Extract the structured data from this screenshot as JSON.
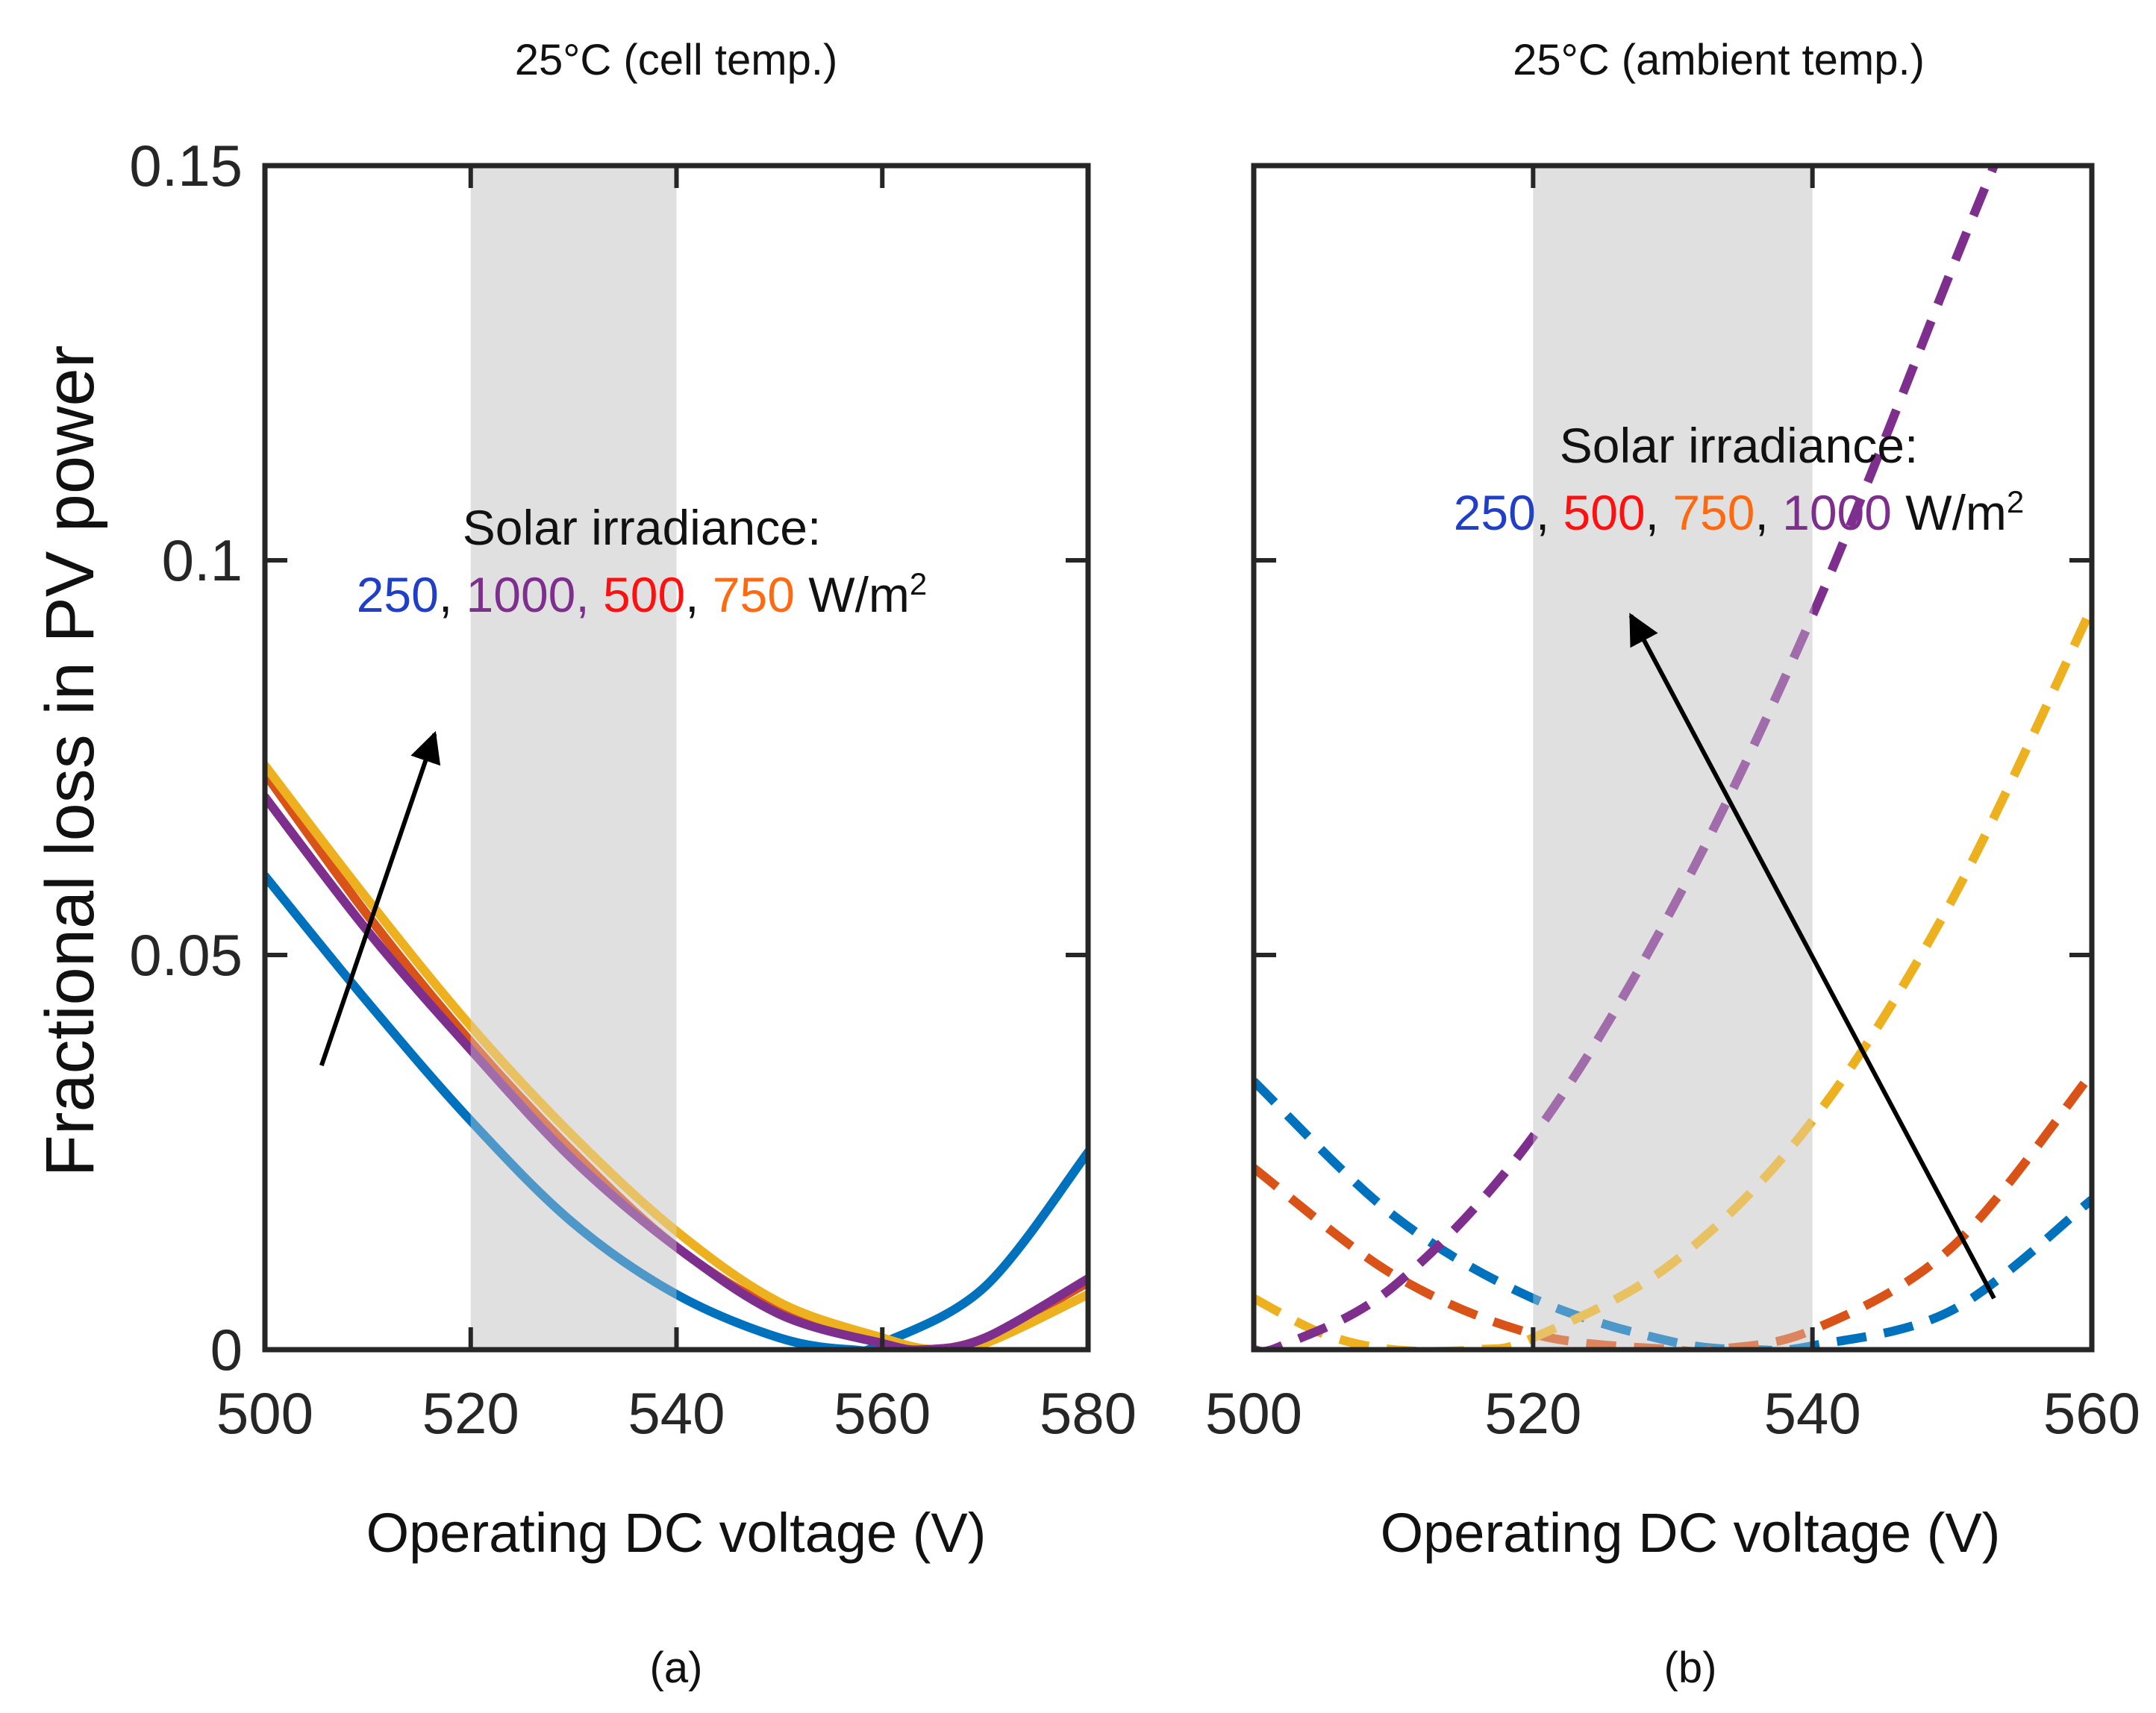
{
  "ylabel": "Fractional loss in PV power",
  "colors": {
    "axis": "#262626",
    "shade": "#e0e0e0",
    "blue": "#0072bd",
    "red": "#d95319",
    "yellow": "#edb120",
    "purple": "#7e2f8e",
    "text_blue": "#1f3fc8",
    "text_purple": "#7e2f8e",
    "text_red": "#ff1010",
    "text_orange": "#ff6a10"
  },
  "chart_data": [
    {
      "id": "a",
      "type": "line",
      "title": "25°C (cell temp.)",
      "caption": "(a)",
      "xlabel": "Operating DC voltage (V)",
      "ylabel": "Fractional loss in PV power",
      "xlim": [
        500,
        580
      ],
      "ylim": [
        0,
        0.15
      ],
      "xticks": [
        "500",
        "520",
        "540",
        "560",
        "580"
      ],
      "xtick_values": [
        500,
        520,
        540,
        560,
        580
      ],
      "yticks": [
        "0",
        "0.05",
        "0.1",
        "0.15"
      ],
      "ytick_values": [
        0,
        0.05,
        0.1,
        0.15
      ],
      "shaded_region": [
        520,
        540
      ],
      "line_style": "solid",
      "annotation": {
        "heading": "Solar irradiance:",
        "values": [
          {
            "text": "250",
            "color": "#1f3fc8"
          },
          {
            "text": ", ",
            "color": "#111111"
          },
          {
            "text": "1000, ",
            "color": "#7e2f8e"
          },
          {
            "text": "500",
            "color": "#ff1010"
          },
          {
            "text": ", ",
            "color": "#111111"
          },
          {
            "text": "750",
            "color": "#ff6a10"
          },
          {
            "text": " W/m",
            "color": "#111111"
          }
        ],
        "superscript": "2",
        "arrow": {
          "from": [
            505.5,
            0.036
          ],
          "to": [
            516.5,
            0.078
          ]
        }
      },
      "series": [
        {
          "name": "250 W/m2",
          "color": "#0072bd",
          "x": [
            500,
            510,
            520,
            530,
            540,
            550,
            557,
            560,
            570,
            580
          ],
          "y": [
            0.06,
            0.044,
            0.029,
            0.016,
            0.007,
            0.0015,
            0.0,
            0.0008,
            0.008,
            0.025
          ]
        },
        {
          "name": "500 W/m2",
          "color": "#d95319",
          "x": [
            500,
            510,
            520,
            530,
            540,
            550,
            560,
            564,
            570,
            580
          ],
          "y": [
            0.073,
            0.055,
            0.039,
            0.025,
            0.013,
            0.005,
            0.001,
            0.0,
            0.0015,
            0.0085
          ]
        },
        {
          "name": "750 W/m2",
          "color": "#edb120",
          "x": [
            500,
            510,
            520,
            530,
            540,
            550,
            560,
            565,
            570,
            580
          ],
          "y": [
            0.074,
            0.057,
            0.041,
            0.027,
            0.015,
            0.006,
            0.0015,
            0.0,
            0.0008,
            0.007
          ]
        },
        {
          "name": "1000 W/m2",
          "color": "#7e2f8e",
          "x": [
            500,
            510,
            520,
            530,
            540,
            550,
            560,
            564,
            570,
            580
          ],
          "y": [
            0.07,
            0.053,
            0.038,
            0.024,
            0.013,
            0.0045,
            0.0008,
            0.0,
            0.0015,
            0.009
          ]
        }
      ]
    },
    {
      "id": "b",
      "type": "line",
      "title": "25°C (ambient temp.)",
      "caption": "(b)",
      "xlabel": "Operating DC voltage (V)",
      "xlim": [
        500,
        560
      ],
      "ylim": [
        0,
        0.15
      ],
      "xticks": [
        "500",
        "520",
        "540",
        "560"
      ],
      "xtick_values": [
        500,
        520,
        540,
        560
      ],
      "yticks": [],
      "ytick_values": [
        0,
        0.05,
        0.1,
        0.15
      ],
      "shaded_region": [
        520,
        540
      ],
      "line_style": "dashed",
      "annotation": {
        "heading": "Solar irradiance:",
        "values": [
          {
            "text": "250",
            "color": "#1f3fc8"
          },
          {
            "text": ", ",
            "color": "#111111"
          },
          {
            "text": "500",
            "color": "#ff1010"
          },
          {
            "text": ", ",
            "color": "#111111"
          },
          {
            "text": "750",
            "color": "#ff6a10"
          },
          {
            "text": ", ",
            "color": "#111111"
          },
          {
            "text": "1000",
            "color": "#7e2f8e"
          },
          {
            "text": " W/m",
            "color": "#111111"
          }
        ],
        "superscript": "2",
        "arrow": {
          "from": [
            553,
            0.0065
          ],
          "to": [
            527,
            0.093
          ]
        }
      },
      "series": [
        {
          "name": "250 W/m2",
          "color": "#0072bd",
          "x": [
            500,
            510,
            520,
            530,
            536,
            540,
            550,
            560
          ],
          "y": [
            0.034,
            0.017,
            0.0065,
            0.001,
            0.0,
            0.0005,
            0.005,
            0.019
          ]
        },
        {
          "name": "500 W/m2",
          "color": "#d95319",
          "x": [
            500,
            510,
            520,
            530,
            533,
            540,
            550,
            560
          ],
          "y": [
            0.023,
            0.0095,
            0.002,
            0.0,
            0.0,
            0.0025,
            0.013,
            0.035
          ]
        },
        {
          "name": "750 W/m2",
          "color": "#edb120",
          "x": [
            500,
            505,
            510,
            516,
            520,
            530,
            540,
            550,
            560
          ],
          "y": [
            0.0065,
            0.002,
            0.0,
            0.0,
            0.0015,
            0.011,
            0.029,
            0.057,
            0.094
          ]
        },
        {
          "name": "1000 W/m2",
          "color": "#7e2f8e",
          "x": [
            500,
            502,
            510,
            520,
            530,
            540,
            550,
            553
          ],
          "y": [
            0.0,
            0.0005,
            0.008,
            0.027,
            0.056,
            0.093,
            0.137,
            0.15
          ]
        }
      ]
    }
  ]
}
